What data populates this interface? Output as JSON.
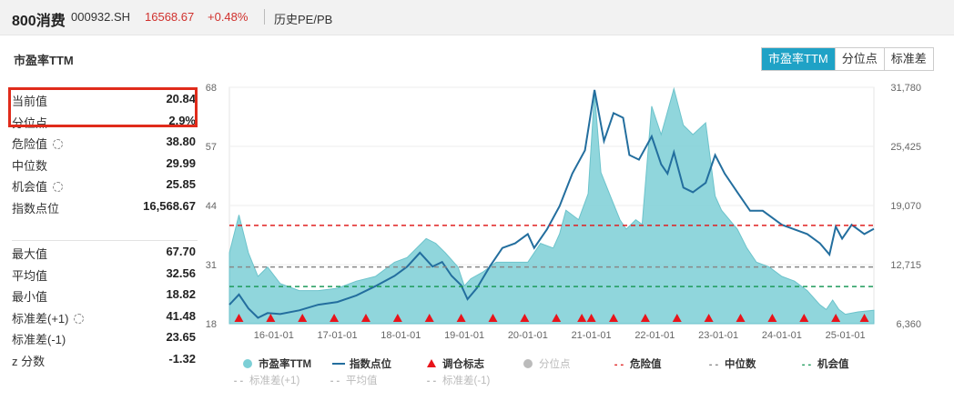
{
  "header": {
    "name": "800消费",
    "code": "000932.SH",
    "price": "16568.67",
    "change": "+0.48%",
    "history_label": "历史PE/PB"
  },
  "panel": {
    "title": "市盈率TTM",
    "tabs": [
      {
        "label": "市盈率TTM",
        "active": true
      },
      {
        "label": "分位点",
        "active": false
      },
      {
        "label": "标准差",
        "active": false
      }
    ]
  },
  "stats": {
    "current": {
      "label": "当前值",
      "value": "20.84"
    },
    "percentile": {
      "label": "分位点",
      "value": "2.9%"
    },
    "danger": {
      "label": "危险值",
      "value": "38.80"
    },
    "median": {
      "label": "中位数",
      "value": "29.99"
    },
    "opportunity": {
      "label": "机会值",
      "value": "25.85"
    },
    "index_level": {
      "label": "指数点位",
      "value": "16,568.67"
    },
    "max": {
      "label": "最大值",
      "value": "67.70"
    },
    "mean": {
      "label": "平均值",
      "value": "32.56"
    },
    "min": {
      "label": "最小值",
      "value": "18.82"
    },
    "sd_plus": {
      "label": "标准差(+1)",
      "value": "41.48"
    },
    "sd_minus": {
      "label": "标准差(-1)",
      "value": "23.65"
    },
    "z": {
      "label": "z 分数",
      "value": "-1.32"
    }
  },
  "colors": {
    "pe_fill": "#7ccfd6",
    "index_line": "#236e9e",
    "danger": "#e02020",
    "median": "#888888",
    "opportunity": "#1e9a5a",
    "marker": "#e8141b",
    "disabled": "#bbbbbb",
    "tab_active": "#1fa2c6"
  },
  "chart_data": {
    "type": "area",
    "x_tick_labels": [
      "16-01-01",
      "17-01-01",
      "18-01-01",
      "19-01-01",
      "20-01-01",
      "21-01-01",
      "22-01-01",
      "23-01-01",
      "24-01-01",
      "25-01-01"
    ],
    "x_range": [
      2015.3,
      2025.45
    ],
    "left_axis": {
      "ticks": [
        "68",
        "57",
        "44",
        "31",
        "18"
      ],
      "range": [
        18,
        68
      ]
    },
    "right_axis": {
      "ticks": [
        "31,780",
        "25,425",
        "19,070",
        "12,715",
        "6,360"
      ],
      "range": [
        6360,
        31780
      ]
    },
    "lines": {
      "danger": 38.8,
      "median": 29.99,
      "opportunity": 25.85
    },
    "pe_series": {
      "name": "市盈率TTM",
      "points": [
        [
          2015.3,
          33
        ],
        [
          2015.45,
          41
        ],
        [
          2015.6,
          33
        ],
        [
          2015.75,
          28
        ],
        [
          2015.9,
          30
        ],
        [
          2016.1,
          26.5
        ],
        [
          2016.4,
          25
        ],
        [
          2016.7,
          25
        ],
        [
          2017.0,
          25.5
        ],
        [
          2017.3,
          27
        ],
        [
          2017.6,
          28
        ],
        [
          2017.9,
          31
        ],
        [
          2018.1,
          32
        ],
        [
          2018.4,
          36
        ],
        [
          2018.55,
          35
        ],
        [
          2018.7,
          33
        ],
        [
          2018.9,
          30
        ],
        [
          2019.0,
          26
        ],
        [
          2019.1,
          27.5
        ],
        [
          2019.3,
          29
        ],
        [
          2019.5,
          31
        ],
        [
          2019.8,
          31
        ],
        [
          2020.0,
          31
        ],
        [
          2020.2,
          35
        ],
        [
          2020.4,
          34
        ],
        [
          2020.5,
          37
        ],
        [
          2020.6,
          42
        ],
        [
          2020.8,
          40
        ],
        [
          2020.95,
          45.5
        ],
        [
          2021.05,
          67
        ],
        [
          2021.15,
          50
        ],
        [
          2021.3,
          45
        ],
        [
          2021.45,
          40
        ],
        [
          2021.55,
          38
        ],
        [
          2021.7,
          40
        ],
        [
          2021.8,
          39
        ],
        [
          2021.95,
          64
        ],
        [
          2022.1,
          58
        ],
        [
          2022.3,
          67.7
        ],
        [
          2022.45,
          60
        ],
        [
          2022.6,
          58
        ],
        [
          2022.8,
          60.5
        ],
        [
          2022.95,
          45
        ],
        [
          2023.05,
          42
        ],
        [
          2023.3,
          38
        ],
        [
          2023.45,
          34
        ],
        [
          2023.6,
          31
        ],
        [
          2023.8,
          30
        ],
        [
          2024.0,
          28
        ],
        [
          2024.2,
          27
        ],
        [
          2024.4,
          25
        ],
        [
          2024.6,
          22
        ],
        [
          2024.7,
          21
        ],
        [
          2024.8,
          23
        ],
        [
          2024.9,
          21
        ],
        [
          2025.0,
          20
        ],
        [
          2025.2,
          20.5
        ],
        [
          2025.45,
          20.84
        ]
      ]
    },
    "index_series": {
      "name": "指数点位",
      "points": [
        [
          2015.3,
          8400
        ],
        [
          2015.45,
          9500
        ],
        [
          2015.6,
          8000
        ],
        [
          2015.75,
          7000
        ],
        [
          2015.9,
          7500
        ],
        [
          2016.1,
          7400
        ],
        [
          2016.4,
          7800
        ],
        [
          2016.7,
          8400
        ],
        [
          2017.0,
          8700
        ],
        [
          2017.3,
          9400
        ],
        [
          2017.6,
          10400
        ],
        [
          2017.9,
          11500
        ],
        [
          2018.1,
          12500
        ],
        [
          2018.3,
          14000
        ],
        [
          2018.5,
          12500
        ],
        [
          2018.65,
          13000
        ],
        [
          2018.8,
          11500
        ],
        [
          2018.95,
          10500
        ],
        [
          2019.05,
          9000
        ],
        [
          2019.2,
          10200
        ],
        [
          2019.4,
          12500
        ],
        [
          2019.6,
          14500
        ],
        [
          2019.8,
          15000
        ],
        [
          2020.0,
          16000
        ],
        [
          2020.1,
          14500
        ],
        [
          2020.3,
          16500
        ],
        [
          2020.5,
          19000
        ],
        [
          2020.7,
          22500
        ],
        [
          2020.9,
          25000
        ],
        [
          2021.05,
          31500
        ],
        [
          2021.2,
          26000
        ],
        [
          2021.35,
          29000
        ],
        [
          2021.5,
          28500
        ],
        [
          2021.6,
          24500
        ],
        [
          2021.75,
          24000
        ],
        [
          2021.95,
          26500
        ],
        [
          2022.1,
          23500
        ],
        [
          2022.2,
          22500
        ],
        [
          2022.3,
          24800
        ],
        [
          2022.45,
          21000
        ],
        [
          2022.6,
          20500
        ],
        [
          2022.8,
          21500
        ],
        [
          2022.95,
          24500
        ],
        [
          2023.1,
          22500
        ],
        [
          2023.3,
          20500
        ],
        [
          2023.5,
          18500
        ],
        [
          2023.7,
          18500
        ],
        [
          2023.9,
          17500
        ],
        [
          2024.0,
          17000
        ],
        [
          2024.2,
          16500
        ],
        [
          2024.4,
          16000
        ],
        [
          2024.6,
          15000
        ],
        [
          2024.75,
          13800
        ],
        [
          2024.85,
          16800
        ],
        [
          2024.95,
          15500
        ],
        [
          2025.1,
          17000
        ],
        [
          2025.3,
          16000
        ],
        [
          2025.45,
          16568.67
        ]
      ]
    },
    "rebalance_markers": [
      2015.45,
      2015.95,
      2016.45,
      2016.95,
      2017.45,
      2017.95,
      2018.45,
      2018.95,
      2019.45,
      2019.95,
      2020.45,
      2020.85,
      2021.0,
      2021.35,
      2021.85,
      2022.35,
      2022.85,
      2023.35,
      2023.85,
      2024.35,
      2024.85,
      2025.3
    ],
    "legend": [
      {
        "label": "市盈率TTM",
        "kind": "dot",
        "color": "#7ccfd6",
        "enabled": true
      },
      {
        "label": "指数点位",
        "kind": "line",
        "color": "#236e9e",
        "enabled": true
      },
      {
        "label": "调仓标志",
        "kind": "triangle",
        "color": "#e8141b",
        "enabled": true
      },
      {
        "label": "分位点",
        "kind": "dot",
        "color": "#bbbbbb",
        "enabled": false
      },
      {
        "label": "危险值",
        "kind": "dash",
        "color": "#e02020",
        "enabled": true
      },
      {
        "label": "中位数",
        "kind": "dash",
        "color": "#888888",
        "enabled": true
      },
      {
        "label": "机会值",
        "kind": "dash",
        "color": "#1e9a5a",
        "enabled": true
      },
      {
        "label": "标准差(+1)",
        "kind": "dash",
        "color": "#bbbbbb",
        "enabled": false
      },
      {
        "label": "平均值",
        "kind": "dash",
        "color": "#bbbbbb",
        "enabled": false
      },
      {
        "label": "标准差(-1)",
        "kind": "dash",
        "color": "#bbbbbb",
        "enabled": false
      }
    ]
  }
}
